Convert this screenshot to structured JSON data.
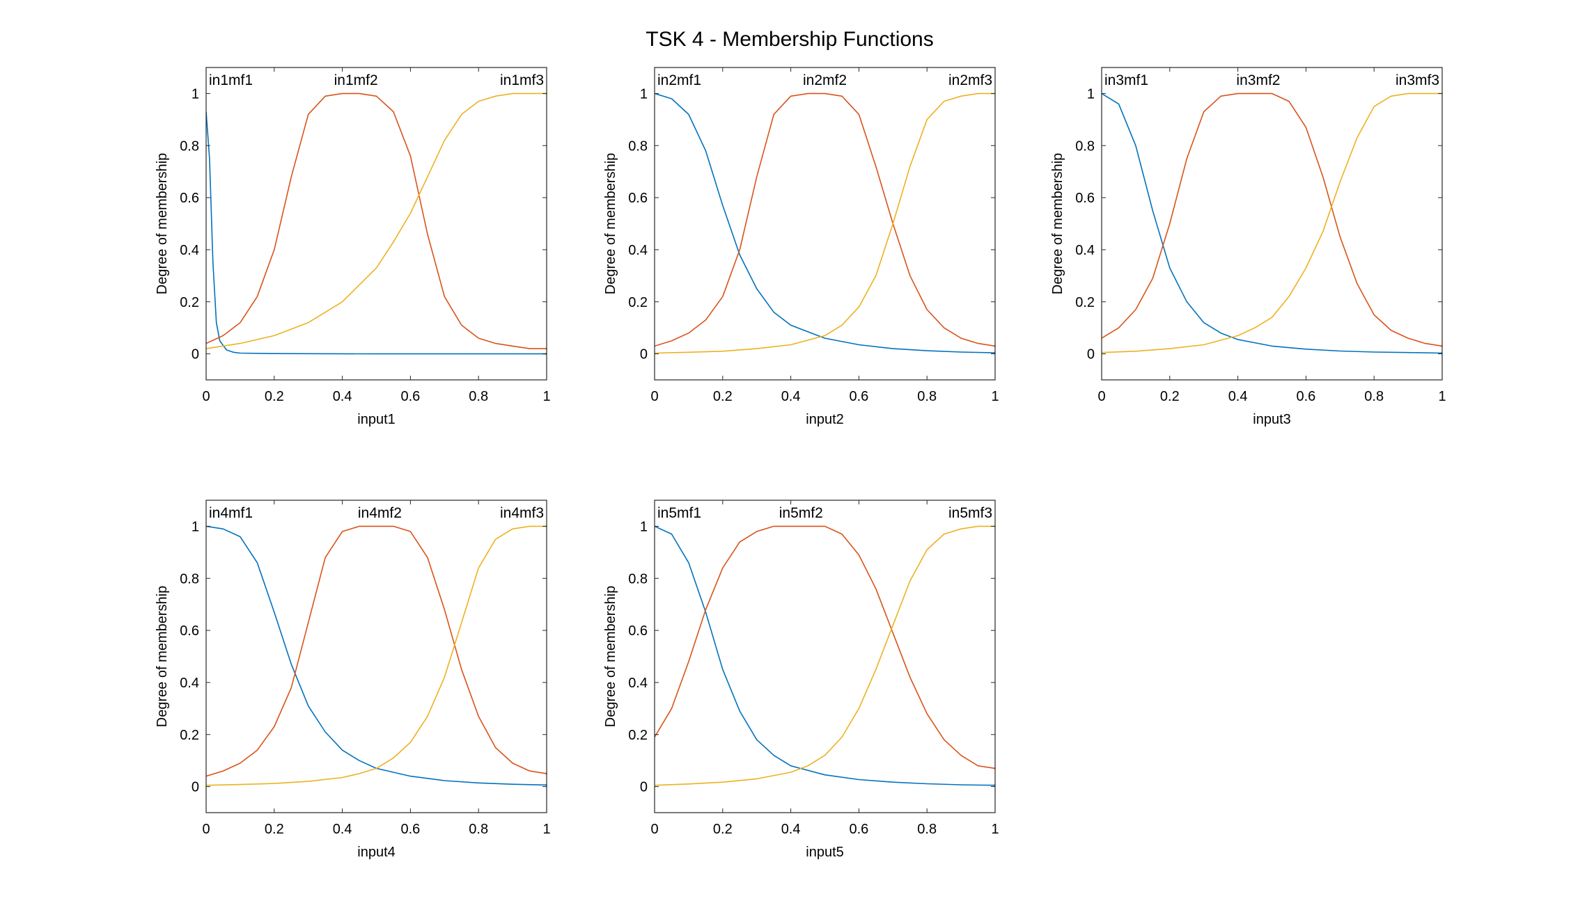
{
  "figure": {
    "title": "TSK 4 - Membership Functions"
  },
  "colors": {
    "mf1": "#0072BD",
    "mf2": "#D95319",
    "mf3": "#EDB120",
    "axis": "#262626"
  },
  "chart_data": [
    {
      "type": "line",
      "xlabel": "input1",
      "ylabel": "Degree of membership",
      "xlim": [
        0,
        1
      ],
      "ylim": [
        -0.1,
        1.1
      ],
      "xticks": [
        0,
        0.2,
        0.4,
        0.6,
        0.8,
        1
      ],
      "yticks": [
        0,
        0.2,
        0.4,
        0.6,
        0.8,
        1
      ],
      "xtick_labels": [
        "0",
        "0.2",
        "0.4",
        "0.6",
        "0.8",
        "1"
      ],
      "ytick_labels": [
        "0",
        "0.2",
        "0.4",
        "0.6",
        "0.8",
        "1"
      ],
      "series": [
        {
          "name": "in1mf1",
          "label_x": 0.08,
          "x": [
            0,
            0.01,
            0.02,
            0.03,
            0.04,
            0.06,
            0.08,
            0.1,
            0.2,
            0.5,
            1
          ],
          "values": [
            0.93,
            0.75,
            0.35,
            0.12,
            0.05,
            0.015,
            0.006,
            0.003,
            0.001,
            0,
            0
          ]
        },
        {
          "name": "in1mf2",
          "label_x": 0.44,
          "x": [
            0,
            0.05,
            0.1,
            0.15,
            0.2,
            0.25,
            0.3,
            0.35,
            0.4,
            0.45,
            0.5,
            0.55,
            0.6,
            0.65,
            0.7,
            0.75,
            0.8,
            0.85,
            0.9,
            0.95,
            1
          ],
          "values": [
            0.04,
            0.07,
            0.12,
            0.22,
            0.4,
            0.68,
            0.92,
            0.99,
            1,
            1,
            0.99,
            0.93,
            0.76,
            0.46,
            0.22,
            0.11,
            0.06,
            0.04,
            0.03,
            0.02,
            0.02
          ],
          "endpoint_value": 0.015
        },
        {
          "name": "in1mf3",
          "label_x": 0.92,
          "x": [
            0,
            0.1,
            0.2,
            0.3,
            0.4,
            0.5,
            0.55,
            0.6,
            0.65,
            0.7,
            0.75,
            0.8,
            0.85,
            0.9,
            0.95,
            1
          ],
          "values": [
            0.02,
            0.04,
            0.07,
            0.12,
            0.2,
            0.33,
            0.43,
            0.54,
            0.68,
            0.82,
            0.92,
            0.97,
            0.99,
            1,
            1,
            1
          ]
        }
      ]
    },
    {
      "type": "line",
      "xlabel": "input2",
      "ylabel": "Degree of membership",
      "xlim": [
        0,
        1
      ],
      "ylim": [
        -0.1,
        1.1
      ],
      "xticks": [
        0,
        0.2,
        0.4,
        0.6,
        0.8,
        1
      ],
      "yticks": [
        0,
        0.2,
        0.4,
        0.6,
        0.8,
        1
      ],
      "xtick_labels": [
        "0",
        "0.2",
        "0.4",
        "0.6",
        "0.8",
        "1"
      ],
      "ytick_labels": [
        "0",
        "0.2",
        "0.4",
        "0.6",
        "0.8",
        "1"
      ],
      "series": [
        {
          "name": "in2mf1",
          "label_x": 0.08,
          "x": [
            0,
            0.05,
            0.1,
            0.15,
            0.2,
            0.25,
            0.3,
            0.35,
            0.4,
            0.5,
            0.6,
            0.7,
            0.8,
            0.9,
            1
          ],
          "values": [
            1,
            0.98,
            0.92,
            0.78,
            0.57,
            0.38,
            0.25,
            0.16,
            0.11,
            0.06,
            0.035,
            0.02,
            0.012,
            0.007,
            0.004
          ]
        },
        {
          "name": "in2mf2",
          "label_x": 0.5,
          "x": [
            0,
            0.05,
            0.1,
            0.15,
            0.2,
            0.25,
            0.3,
            0.35,
            0.4,
            0.45,
            0.5,
            0.55,
            0.6,
            0.65,
            0.7,
            0.75,
            0.8,
            0.85,
            0.9,
            0.95,
            1
          ],
          "values": [
            0.03,
            0.05,
            0.08,
            0.13,
            0.22,
            0.4,
            0.68,
            0.92,
            0.99,
            1,
            1,
            0.99,
            0.92,
            0.72,
            0.5,
            0.3,
            0.17,
            0.1,
            0.06,
            0.04,
            0.03
          ]
        },
        {
          "name": "in2mf3",
          "label_x": 0.93,
          "x": [
            0,
            0.1,
            0.2,
            0.3,
            0.4,
            0.5,
            0.55,
            0.6,
            0.65,
            0.7,
            0.75,
            0.8,
            0.85,
            0.9,
            0.95,
            1
          ],
          "values": [
            0.003,
            0.006,
            0.01,
            0.02,
            0.035,
            0.07,
            0.11,
            0.18,
            0.3,
            0.5,
            0.72,
            0.9,
            0.97,
            0.99,
            1,
            1
          ]
        }
      ]
    },
    {
      "type": "line",
      "xlabel": "input3",
      "ylabel": "Degree of membership",
      "xlim": [
        0,
        1
      ],
      "ylim": [
        -0.1,
        1.1
      ],
      "xticks": [
        0,
        0.2,
        0.4,
        0.6,
        0.8,
        1
      ],
      "yticks": [
        0,
        0.2,
        0.4,
        0.6,
        0.8,
        1
      ],
      "xtick_labels": [
        "0",
        "0.2",
        "0.4",
        "0.6",
        "0.8",
        "1"
      ],
      "ytick_labels": [
        "0",
        "0.2",
        "0.4",
        "0.6",
        "0.8",
        "1"
      ],
      "series": [
        {
          "name": "in3mf1",
          "label_x": 0.08,
          "x": [
            0,
            0.05,
            0.1,
            0.15,
            0.2,
            0.25,
            0.3,
            0.35,
            0.4,
            0.5,
            0.6,
            0.7,
            0.8,
            0.9,
            1
          ],
          "values": [
            1,
            0.96,
            0.8,
            0.55,
            0.33,
            0.2,
            0.12,
            0.08,
            0.055,
            0.03,
            0.018,
            0.011,
            0.007,
            0.005,
            0.003
          ]
        },
        {
          "name": "in3mf2",
          "label_x": 0.46,
          "x": [
            0,
            0.05,
            0.1,
            0.15,
            0.2,
            0.25,
            0.3,
            0.35,
            0.4,
            0.45,
            0.5,
            0.55,
            0.6,
            0.65,
            0.7,
            0.75,
            0.8,
            0.85,
            0.9,
            0.95,
            1
          ],
          "values": [
            0.06,
            0.1,
            0.17,
            0.29,
            0.5,
            0.75,
            0.93,
            0.99,
            1,
            1,
            1,
            0.97,
            0.87,
            0.68,
            0.45,
            0.27,
            0.15,
            0.09,
            0.06,
            0.04,
            0.03
          ]
        },
        {
          "name": "in3mf3",
          "label_x": 0.93,
          "x": [
            0,
            0.1,
            0.2,
            0.3,
            0.4,
            0.45,
            0.5,
            0.55,
            0.6,
            0.65,
            0.7,
            0.75,
            0.8,
            0.85,
            0.9,
            0.95,
            1
          ],
          "values": [
            0.005,
            0.01,
            0.02,
            0.035,
            0.07,
            0.1,
            0.14,
            0.22,
            0.33,
            0.47,
            0.66,
            0.83,
            0.95,
            0.99,
            1,
            1,
            1
          ]
        }
      ]
    },
    {
      "type": "line",
      "xlabel": "input4",
      "ylabel": "Degree of membership",
      "xlim": [
        0,
        1
      ],
      "ylim": [
        -0.1,
        1.1
      ],
      "xticks": [
        0,
        0.2,
        0.4,
        0.6,
        0.8,
        1
      ],
      "yticks": [
        0,
        0.2,
        0.4,
        0.6,
        0.8,
        1
      ],
      "xtick_labels": [
        "0",
        "0.2",
        "0.4",
        "0.6",
        "0.8",
        "1"
      ],
      "ytick_labels": [
        "0",
        "0.2",
        "0.4",
        "0.6",
        "0.8",
        "1"
      ],
      "series": [
        {
          "name": "in4mf1",
          "label_x": 0.08,
          "x": [
            0,
            0.05,
            0.1,
            0.15,
            0.2,
            0.25,
            0.3,
            0.35,
            0.4,
            0.45,
            0.5,
            0.6,
            0.7,
            0.8,
            0.9,
            1
          ],
          "values": [
            1,
            0.99,
            0.96,
            0.86,
            0.67,
            0.47,
            0.31,
            0.21,
            0.14,
            0.1,
            0.07,
            0.04,
            0.023,
            0.014,
            0.009,
            0.006
          ]
        },
        {
          "name": "in4mf2",
          "label_x": 0.51,
          "x": [
            0,
            0.05,
            0.1,
            0.15,
            0.2,
            0.25,
            0.3,
            0.35,
            0.4,
            0.45,
            0.5,
            0.55,
            0.6,
            0.65,
            0.7,
            0.75,
            0.8,
            0.85,
            0.9,
            0.95,
            1
          ],
          "values": [
            0.04,
            0.06,
            0.09,
            0.14,
            0.23,
            0.38,
            0.63,
            0.88,
            0.98,
            1,
            1,
            1,
            0.98,
            0.88,
            0.68,
            0.45,
            0.27,
            0.15,
            0.09,
            0.06,
            0.05
          ]
        },
        {
          "name": "in4mf3",
          "label_x": 0.92,
          "x": [
            0,
            0.1,
            0.2,
            0.3,
            0.4,
            0.45,
            0.5,
            0.55,
            0.6,
            0.65,
            0.7,
            0.75,
            0.8,
            0.85,
            0.9,
            0.95,
            1
          ],
          "values": [
            0.005,
            0.008,
            0.012,
            0.02,
            0.035,
            0.05,
            0.07,
            0.11,
            0.17,
            0.27,
            0.42,
            0.63,
            0.84,
            0.95,
            0.99,
            1,
            1
          ]
        }
      ]
    },
    {
      "type": "line",
      "xlabel": "input5",
      "ylabel": "Degree of membership",
      "xlim": [
        0,
        1
      ],
      "ylim": [
        -0.1,
        1.1
      ],
      "xticks": [
        0,
        0.2,
        0.4,
        0.6,
        0.8,
        1
      ],
      "yticks": [
        0,
        0.2,
        0.4,
        0.6,
        0.8,
        1
      ],
      "xtick_labels": [
        "0",
        "0.2",
        "0.4",
        "0.6",
        "0.8",
        "1"
      ],
      "ytick_labels": [
        "0",
        "0.2",
        "0.4",
        "0.6",
        "0.8",
        "1"
      ],
      "series": [
        {
          "name": "in5mf1",
          "label_x": 0.08,
          "x": [
            0,
            0.05,
            0.1,
            0.15,
            0.2,
            0.25,
            0.3,
            0.35,
            0.4,
            0.5,
            0.6,
            0.7,
            0.8,
            0.9,
            1
          ],
          "values": [
            1,
            0.97,
            0.86,
            0.67,
            0.45,
            0.29,
            0.18,
            0.12,
            0.08,
            0.045,
            0.027,
            0.017,
            0.011,
            0.007,
            0.005
          ]
        },
        {
          "name": "in5mf2",
          "label_x": 0.43,
          "x": [
            0,
            0.05,
            0.1,
            0.15,
            0.2,
            0.25,
            0.3,
            0.35,
            0.4,
            0.45,
            0.5,
            0.55,
            0.6,
            0.65,
            0.7,
            0.75,
            0.8,
            0.85,
            0.9,
            0.95,
            1
          ],
          "values": [
            0.19,
            0.3,
            0.48,
            0.68,
            0.84,
            0.94,
            0.98,
            1,
            1,
            1,
            1,
            0.97,
            0.89,
            0.76,
            0.59,
            0.42,
            0.28,
            0.18,
            0.12,
            0.08,
            0.07
          ]
        },
        {
          "name": "in5mf3",
          "label_x": 0.92,
          "x": [
            0,
            0.1,
            0.2,
            0.3,
            0.4,
            0.45,
            0.5,
            0.55,
            0.6,
            0.65,
            0.7,
            0.75,
            0.8,
            0.85,
            0.9,
            0.95,
            1
          ],
          "values": [
            0.005,
            0.01,
            0.017,
            0.03,
            0.055,
            0.08,
            0.12,
            0.19,
            0.3,
            0.45,
            0.62,
            0.79,
            0.91,
            0.97,
            0.99,
            1,
            1
          ]
        }
      ]
    }
  ]
}
